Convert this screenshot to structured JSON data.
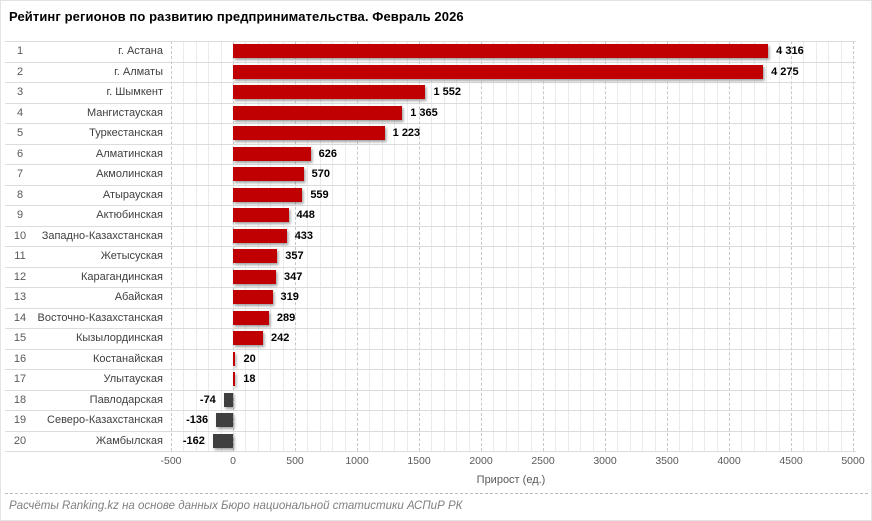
{
  "title": "Рейтинг регионов по развитию предпринимательства. Февраль 2026",
  "footer": "Расчёты Ranking.kz на основе данных Бюро национальной статистики АСПиР РК",
  "chart_data": {
    "type": "bar",
    "orientation": "horizontal",
    "title": "Рейтинг регионов по развитию предпринимательства. Февраль 2026",
    "xlabel": "Прирост (ед.)",
    "xlim": [
      -500,
      5000
    ],
    "x_ticks": [
      -500,
      0,
      500,
      1000,
      1500,
      2000,
      2500,
      3000,
      3500,
      4000,
      4500,
      5000
    ],
    "x_tick_labels": [
      "-500",
      "0",
      "500",
      "1000",
      "1500",
      "2000",
      "2500",
      "3000",
      "3500",
      "4000",
      "4500",
      "5000"
    ],
    "grid": true,
    "legend": false,
    "positive_color": "#c00000",
    "negative_color": "#3f3f3f",
    "ranks": [
      1,
      2,
      3,
      4,
      5,
      6,
      7,
      8,
      9,
      10,
      11,
      12,
      13,
      14,
      15,
      16,
      17,
      18,
      19,
      20
    ],
    "categories": [
      "г. Астана",
      "г. Алматы",
      "г. Шымкент",
      "Мангистауская",
      "Туркестанская",
      "Алматинская",
      "Акмолинская",
      "Атырауская",
      "Актюбинская",
      "Западно-Казахстанская",
      "Жетысуская",
      "Карагандинская",
      "Абайская",
      "Восточно-Казахстанская",
      "Кызылординская",
      "Костанайская",
      "Улытауская",
      "Павлодарская",
      "Северо-Казахстанская",
      "Жамбылская"
    ],
    "values": [
      4316,
      4275,
      1552,
      1365,
      1223,
      626,
      570,
      559,
      448,
      433,
      357,
      347,
      319,
      289,
      242,
      20,
      18,
      -74,
      -136,
      -162
    ],
    "value_labels": [
      "4 316",
      "4 275",
      "1 552",
      "1 365",
      "1 223",
      "626",
      "570",
      "559",
      "448",
      "433",
      "357",
      "347",
      "319",
      "289",
      "242",
      "20",
      "18",
      "-74",
      "-136",
      "-162"
    ]
  }
}
